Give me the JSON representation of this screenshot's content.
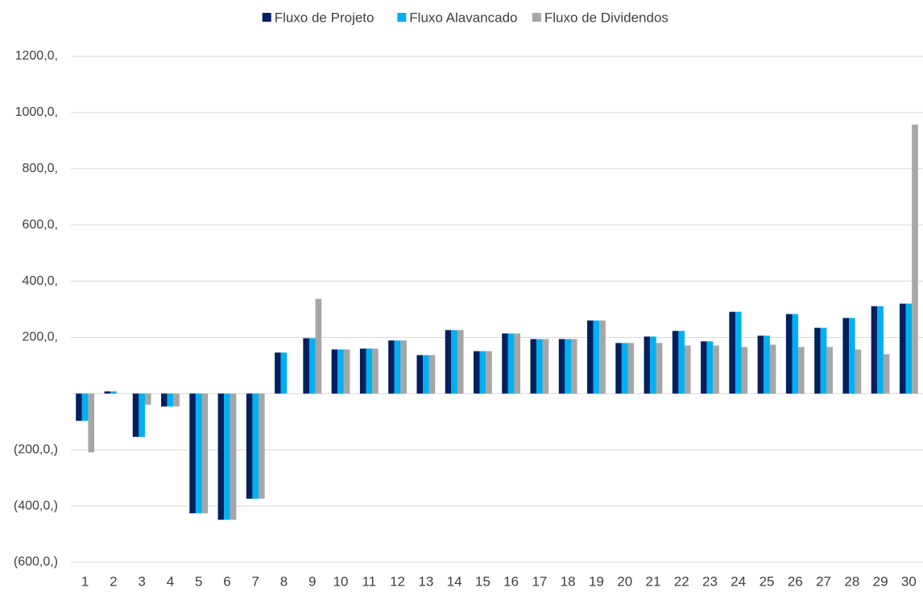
{
  "chart_data": {
    "type": "bar",
    "categories": [
      "1",
      "2",
      "3",
      "4",
      "5",
      "6",
      "7",
      "8",
      "9",
      "10",
      "11",
      "12",
      "13",
      "14",
      "15",
      "16",
      "17",
      "18",
      "19",
      "20",
      "21",
      "22",
      "23",
      "24",
      "25",
      "26",
      "27",
      "28",
      "29",
      "30"
    ],
    "series": [
      {
        "name": "Fluxo de Projeto",
        "color": "#002060",
        "values": [
          -97,
          8,
          -154,
          -46,
          -426,
          -449,
          -374,
          146,
          197,
          157,
          160,
          189,
          137,
          226,
          151,
          214,
          194,
          194,
          260,
          180,
          203,
          223,
          186,
          291,
          206,
          283,
          234,
          269,
          311,
          320
        ]
      },
      {
        "name": "Fluxo Alavancado",
        "color": "#00b0f0",
        "values": [
          -97,
          8,
          -154,
          -46,
          -426,
          -449,
          -374,
          146,
          197,
          157,
          160,
          189,
          137,
          226,
          151,
          214,
          194,
          194,
          260,
          180,
          203,
          223,
          186,
          291,
          206,
          283,
          234,
          269,
          311,
          320
        ]
      },
      {
        "name": "Fluxo de Dividendos",
        "color": "#a6a6a6",
        "values": [
          -209,
          0,
          -40,
          -46,
          -426,
          -449,
          -374,
          0,
          337,
          157,
          160,
          189,
          137,
          226,
          151,
          214,
          194,
          194,
          260,
          180,
          180,
          171,
          171,
          166,
          174,
          166,
          166,
          157,
          140,
          957
        ]
      }
    ],
    "ylim": [
      -600,
      1200
    ],
    "yticks": [
      {
        "value": -600,
        "label": "(600,0,)"
      },
      {
        "value": -400,
        "label": "(400,0,)"
      },
      {
        "value": -200,
        "label": "(200,0,)"
      },
      {
        "value": 200,
        "label": "200,0,"
      },
      {
        "value": 400,
        "label": "400,0,"
      },
      {
        "value": 600,
        "label": "600,0,"
      },
      {
        "value": 800,
        "label": "800,0,"
      },
      {
        "value": 1000,
        "label": "1000,0,"
      },
      {
        "value": 1200,
        "label": "1200,0,"
      }
    ],
    "grid": true,
    "legend": "top"
  }
}
